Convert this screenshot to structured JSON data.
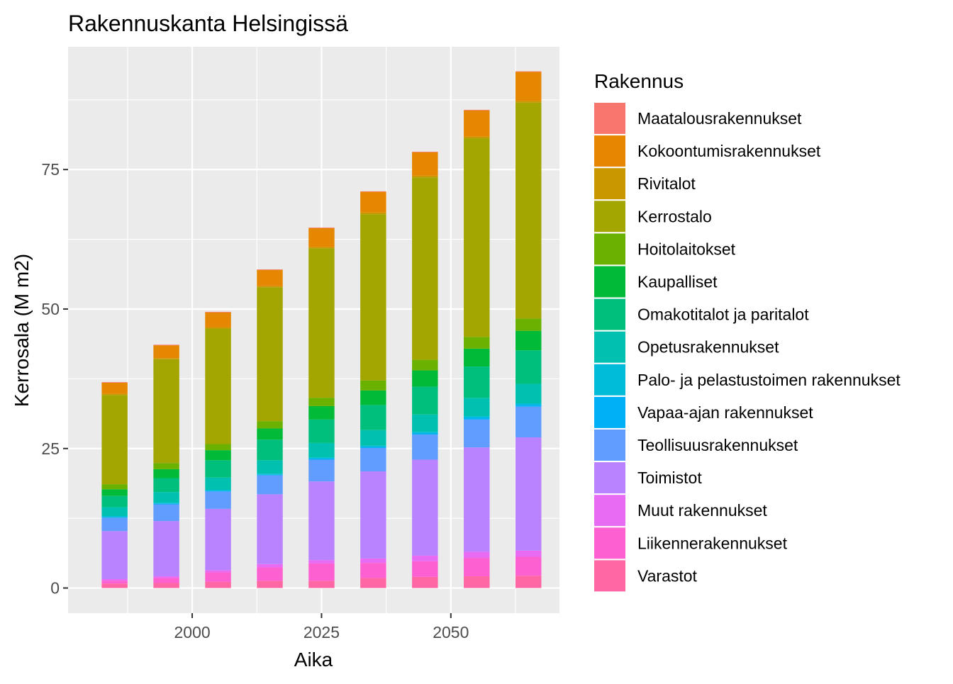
{
  "chart_data": {
    "type": "bar",
    "stacked": true,
    "title": "Rakennuskanta Helsingissä",
    "xlabel": "Aika",
    "ylabel": "Kerrosala (M m2)",
    "xlim": [
      1976,
      2071
    ],
    "ylim": [
      -4.5,
      97
    ],
    "x_ticks": [
      2000,
      2025,
      2050
    ],
    "y_ticks": [
      0,
      25,
      50,
      75
    ],
    "x_tick_labels": [
      "2000",
      "2025",
      "2050"
    ],
    "y_tick_labels": [
      "0",
      "25",
      "50",
      "75"
    ],
    "grid": true,
    "panel_background": "#ebebeb",
    "legend_title": "Rakennus",
    "legend_position": "right",
    "x": [
      1985,
      1995,
      2005,
      2015,
      2025,
      2035,
      2045,
      2055,
      2065
    ],
    "bar_width": 5,
    "series": [
      {
        "name": "Maatalousrakennukset",
        "color": "#F8766D",
        "values": [
          0.1,
          0.1,
          0.1,
          0.1,
          0.1,
          0.1,
          0.1,
          0.1,
          0.1
        ]
      },
      {
        "name": "Kokoontumisrakennukset",
        "color": "#E58700",
        "values": [
          2.0,
          2.3,
          2.7,
          2.9,
          3.4,
          3.7,
          4.2,
          4.7,
          5.2
        ]
      },
      {
        "name": "Rivitalot",
        "color": "#C99800",
        "values": [
          0.2,
          0.2,
          0.2,
          0.2,
          0.2,
          0.3,
          0.3,
          0.3,
          0.3
        ]
      },
      {
        "name": "Kerrostalo",
        "color": "#A3A500",
        "values": [
          16.0,
          18.6,
          20.7,
          24.0,
          26.8,
          29.8,
          32.7,
          35.6,
          38.7
        ]
      },
      {
        "name": "Hoitolaitokset",
        "color": "#6BB100",
        "values": [
          0.9,
          1.1,
          1.1,
          1.3,
          1.5,
          1.8,
          1.9,
          2.1,
          2.2
        ]
      },
      {
        "name": "Kaupalliset",
        "color": "#00BA38",
        "values": [
          1.2,
          1.6,
          1.8,
          2.0,
          2.4,
          2.6,
          2.9,
          3.2,
          3.5
        ]
      },
      {
        "name": "Omakotitalot ja paritalot",
        "color": "#00BF7D",
        "values": [
          2.0,
          2.5,
          3.1,
          3.7,
          4.2,
          4.5,
          5.0,
          5.6,
          6.0
        ]
      },
      {
        "name": "Opetusrakennukset",
        "color": "#00C0AF",
        "values": [
          1.6,
          1.9,
          2.2,
          2.4,
          2.6,
          2.8,
          3.1,
          3.3,
          3.5
        ]
      },
      {
        "name": "Palo- ja pelastustoimen rakennukset",
        "color": "#00BCD8",
        "values": [
          0.2,
          0.2,
          0.2,
          0.2,
          0.2,
          0.2,
          0.3,
          0.3,
          0.3
        ]
      },
      {
        "name": "Vapaa-ajan rakennukset",
        "color": "#00B0F6",
        "values": [
          0.1,
          0.1,
          0.1,
          0.1,
          0.2,
          0.2,
          0.2,
          0.3,
          0.3
        ]
      },
      {
        "name": "Teollisuusrakennukset",
        "color": "#619CFF",
        "values": [
          2.4,
          3.0,
          3.1,
          3.4,
          3.9,
          4.2,
          4.5,
          5.0,
          5.5
        ]
      },
      {
        "name": "Toimistot",
        "color": "#B983FF",
        "values": [
          8.6,
          9.9,
          11.0,
          12.5,
          14.1,
          15.6,
          17.2,
          18.7,
          20.3
        ]
      },
      {
        "name": "Muut rakennukset",
        "color": "#E76BF3",
        "values": [
          0.3,
          0.3,
          0.4,
          0.6,
          0.6,
          0.8,
          1.0,
          1.1,
          1.1
        ]
      },
      {
        "name": "Liikennerakennukset",
        "color": "#FD61D1",
        "values": [
          0.5,
          0.9,
          1.7,
          2.4,
          3.1,
          2.7,
          2.8,
          3.3,
          3.4
        ]
      },
      {
        "name": "Varastot",
        "color": "#FF67A4",
        "values": [
          0.8,
          0.9,
          1.1,
          1.3,
          1.3,
          1.8,
          2.0,
          2.1,
          2.2
        ]
      }
    ]
  }
}
